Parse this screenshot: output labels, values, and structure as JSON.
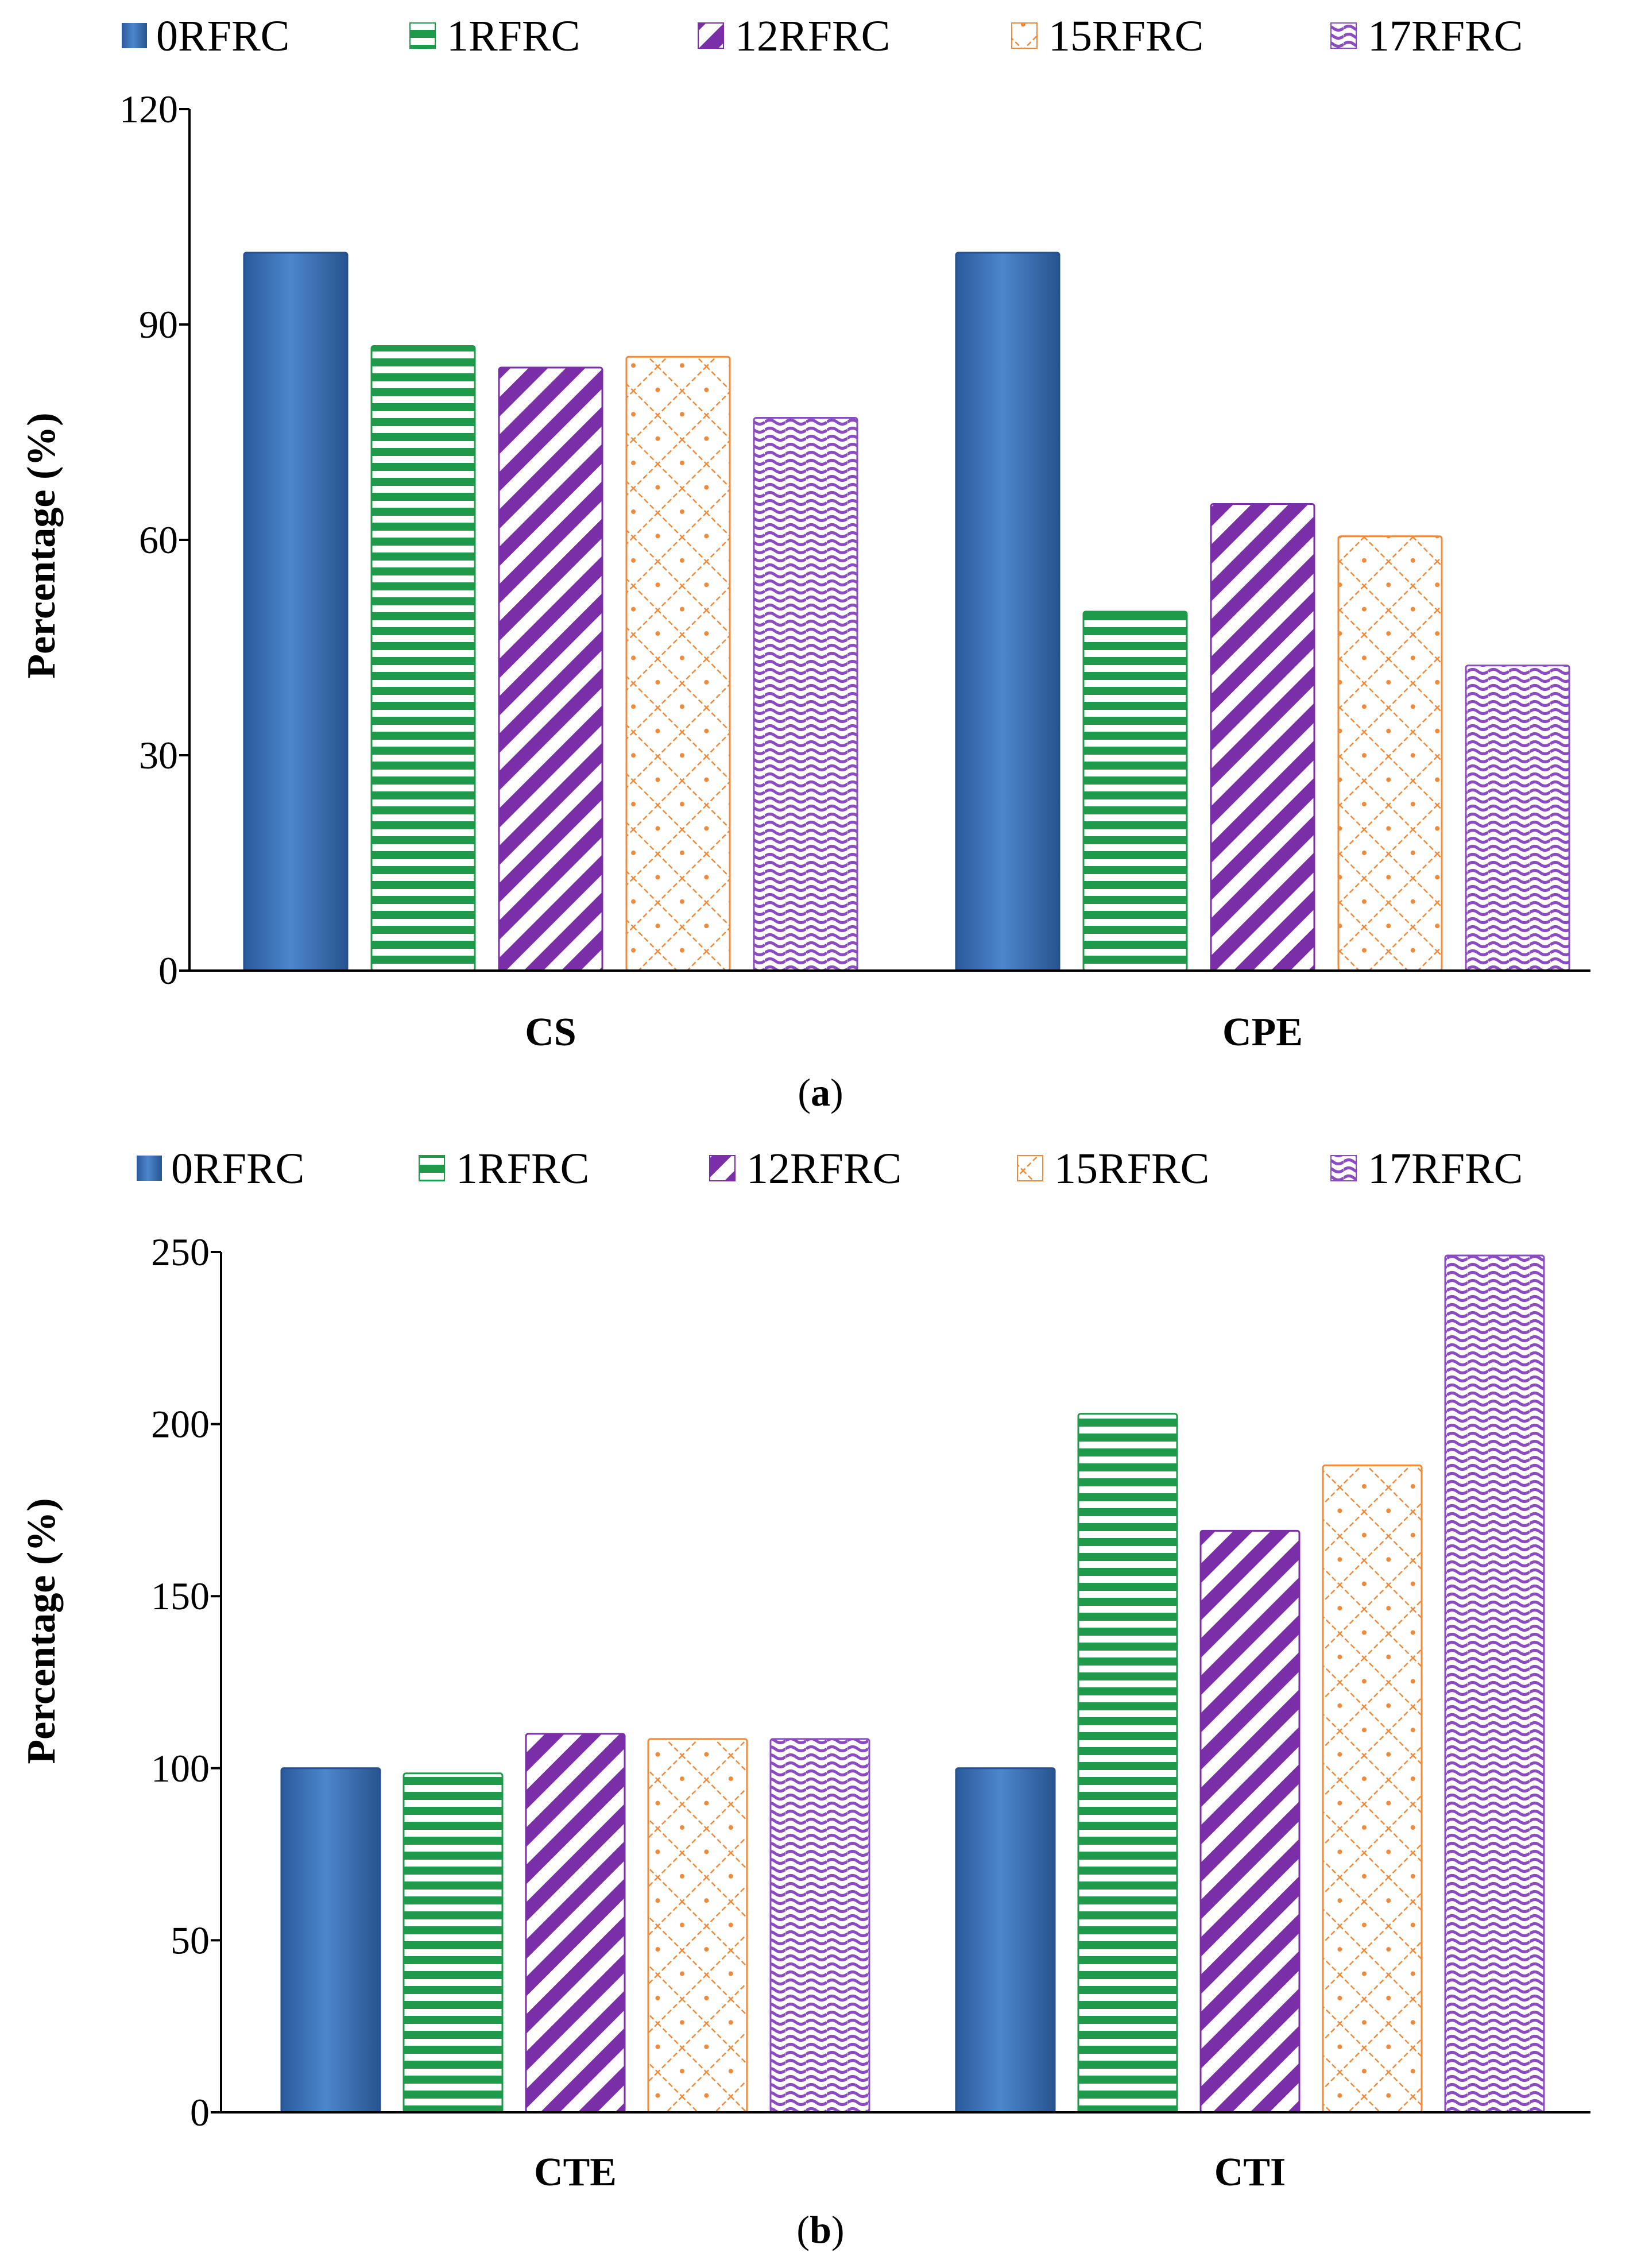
{
  "colors": {
    "0RFRC": "#3d72b8",
    "1RFRC": "#1e9a4a",
    "12RFRC": "#7a2fa8",
    "15RFRC": "#ef8a3a",
    "17RFRC": "#8a4cc0"
  },
  "chart_data": [
    {
      "type": "bar",
      "panel_label": "a",
      "title": "",
      "xlabel": "",
      "ylabel": "Percentage (%)",
      "ylim": [
        0,
        120
      ],
      "yticks": [
        "0",
        "30",
        "60",
        "90",
        "120"
      ],
      "categories": [
        "CS",
        "CPE"
      ],
      "legend": [
        "0RFRC",
        "1RFRC",
        "12RFRC",
        "15RFRC",
        "17RFRC"
      ],
      "series": [
        {
          "name": "0RFRC",
          "values": [
            100,
            100
          ]
        },
        {
          "name": "1RFRC",
          "values": [
            87,
            50
          ]
        },
        {
          "name": "12RFRC",
          "values": [
            84,
            65
          ]
        },
        {
          "name": "15RFRC",
          "values": [
            85.5,
            60.5
          ]
        },
        {
          "name": "17RFRC",
          "values": [
            77,
            42.5
          ]
        }
      ]
    },
    {
      "type": "bar",
      "panel_label": "b",
      "title": "",
      "xlabel": "",
      "ylabel": "Percentage (%)",
      "ylim": [
        0,
        250
      ],
      "yticks": [
        "0",
        "50",
        "100",
        "150",
        "200",
        "250"
      ],
      "categories": [
        "CTE",
        "CTI"
      ],
      "legend": [
        "0RFRC",
        "1RFRC",
        "12RFRC",
        "15RFRC",
        "17RFRC"
      ],
      "series": [
        {
          "name": "0RFRC",
          "values": [
            100,
            100
          ]
        },
        {
          "name": "1RFRC",
          "values": [
            98.5,
            203
          ]
        },
        {
          "name": "12RFRC",
          "values": [
            110,
            169
          ]
        },
        {
          "name": "15RFRC",
          "values": [
            108.5,
            188
          ]
        },
        {
          "name": "17RFRC",
          "values": [
            108.5,
            249
          ]
        }
      ]
    }
  ]
}
